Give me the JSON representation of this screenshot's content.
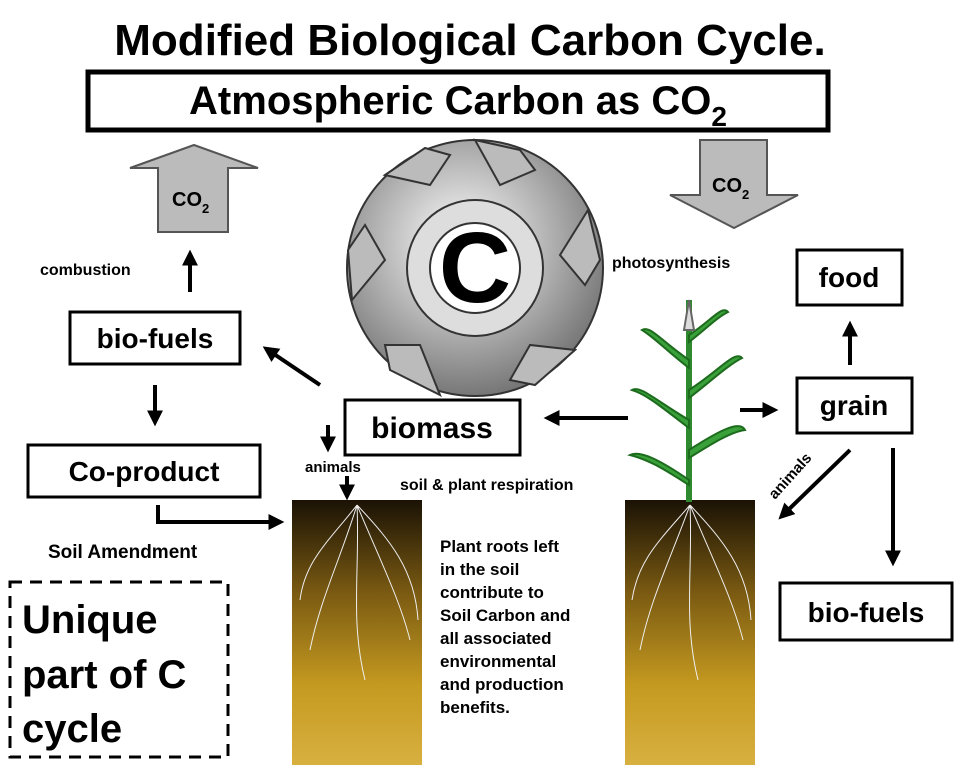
{
  "title": "Modified Biological Carbon Cycle.",
  "atmosphere": {
    "text": "Atmospheric Carbon as CO",
    "subscript": "2"
  },
  "co2_up": {
    "text": "CO",
    "subscript": "2"
  },
  "co2_down": {
    "text": "CO",
    "subscript": "2"
  },
  "center": "C",
  "labels": {
    "combustion": "combustion",
    "soil_amendment": "Soil Amendment",
    "animals_left": "animals",
    "respiration": "soil & plant respiration",
    "photosynthesis": "photosynthesis",
    "animals_right": "animals"
  },
  "boxes": {
    "biofuels_left": "bio-fuels",
    "coproduct": "Co-product",
    "biomass": "biomass",
    "food": "food",
    "grain": "grain",
    "biofuels_right": "bio-fuels"
  },
  "roots_note": [
    "Plant roots left",
    "in the soil",
    "contribute to",
    "Soil Carbon and",
    "all associated",
    "environmental",
    "and production",
    "benefits."
  ],
  "unique": [
    "Unique",
    "part of C",
    "cycle"
  ]
}
